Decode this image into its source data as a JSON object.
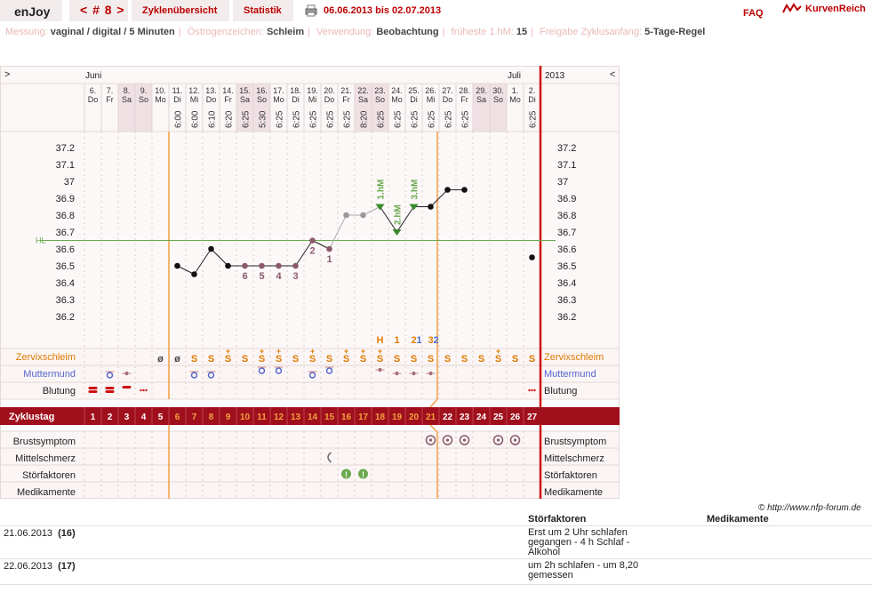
{
  "header": {
    "app_title": "enJoy",
    "cycle_nav": "< # 8 >",
    "tab_overview": "Zyklenübersicht",
    "tab_stats": "Statistik",
    "print_icon": "printer-icon",
    "date_range": "06.06.2013 bis 02.07.2013",
    "faq": "FAQ",
    "brand_icon": "curve-logo-icon",
    "brand": "KurvenReich"
  },
  "settings": {
    "measure_label": "Messung:",
    "measure_value": "vaginal / digital / 5 Minuten",
    "estrogen_label": "Östrogenzeichen:",
    "estrogen_value": "Schleim",
    "usage_label": "Verwendung:",
    "usage_value": "Beobachtung",
    "earliest_label": "früheste 1.hM:",
    "earliest_value": "15",
    "release_label": "Freigabe Zyklusanfang:",
    "release_value": "5-Tage-Regel"
  },
  "chart_data": {
    "type": "line",
    "nav_prev": ">",
    "nav_next": "<",
    "month_labels": [
      {
        "label": "Juni",
        "col": 0
      },
      {
        "label": "Juli",
        "col": 25
      }
    ],
    "year_label": "2013",
    "days": [
      {
        "date": "6.",
        "wd": "Do",
        "time": ""
      },
      {
        "date": "7.",
        "wd": "Fr",
        "time": ""
      },
      {
        "date": "8.",
        "wd": "Sa",
        "time": ""
      },
      {
        "date": "9.",
        "wd": "So",
        "time": ""
      },
      {
        "date": "10.",
        "wd": "Mo",
        "time": ""
      },
      {
        "date": "11.",
        "wd": "Di",
        "time": "6:00"
      },
      {
        "date": "12.",
        "wd": "Mi",
        "time": "6:00"
      },
      {
        "date": "13.",
        "wd": "Do",
        "time": "6:10"
      },
      {
        "date": "14.",
        "wd": "Fr",
        "time": "6:20"
      },
      {
        "date": "15.",
        "wd": "Sa",
        "time": "6:25"
      },
      {
        "date": "16.",
        "wd": "So",
        "time": "5:30"
      },
      {
        "date": "17.",
        "wd": "Mo",
        "time": "6:25"
      },
      {
        "date": "18.",
        "wd": "Di",
        "time": "6:25"
      },
      {
        "date": "19.",
        "wd": "Mi",
        "time": "6:25"
      },
      {
        "date": "20.",
        "wd": "Do",
        "time": "6:25"
      },
      {
        "date": "21.",
        "wd": "Fr",
        "time": "6:25"
      },
      {
        "date": "22.",
        "wd": "Sa",
        "time": "8:20"
      },
      {
        "date": "23.",
        "wd": "So",
        "time": "6:25"
      },
      {
        "date": "24.",
        "wd": "Mo",
        "time": "6:25"
      },
      {
        "date": "25.",
        "wd": "Di",
        "time": "6:25"
      },
      {
        "date": "26.",
        "wd": "Mi",
        "time": "6:25"
      },
      {
        "date": "27.",
        "wd": "Do",
        "time": "6:25"
      },
      {
        "date": "28.",
        "wd": "Fr",
        "time": "6:25"
      },
      {
        "date": "29.",
        "wd": "Sa",
        "time": ""
      },
      {
        "date": "30.",
        "wd": "So",
        "time": ""
      },
      {
        "date": "1.",
        "wd": "Mo",
        "time": ""
      },
      {
        "date": "2.",
        "wd": "Di",
        "time": "6:25"
      }
    ],
    "weekend_cols": [
      2,
      3,
      9,
      10,
      16,
      17,
      23,
      24
    ],
    "ylim": [
      36.1,
      37.3
    ],
    "y_ticks": [
      "37.2",
      "37.1",
      "37",
      "36.9",
      "36.8",
      "36.7",
      "36.6",
      "36.5",
      "36.4",
      "36.3",
      "36.2"
    ],
    "hl_label": "HL",
    "hl_value": 36.65,
    "temperatures": [
      {
        "col": 5,
        "t": 36.5,
        "kind": "normal"
      },
      {
        "col": 6,
        "t": 36.45,
        "kind": "normal"
      },
      {
        "col": 7,
        "t": 36.6,
        "kind": "normal"
      },
      {
        "col": 8,
        "t": 36.5,
        "kind": "normal"
      },
      {
        "col": 9,
        "t": 36.5,
        "kind": "low",
        "mark": "6"
      },
      {
        "col": 10,
        "t": 36.5,
        "kind": "low",
        "mark": "5"
      },
      {
        "col": 11,
        "t": 36.5,
        "kind": "low",
        "mark": "4"
      },
      {
        "col": 12,
        "t": 36.5,
        "kind": "low",
        "mark": "3"
      },
      {
        "col": 13,
        "t": 36.65,
        "kind": "low",
        "mark": "2"
      },
      {
        "col": 14,
        "t": 36.6,
        "kind": "low",
        "mark": "1"
      },
      {
        "col": 15,
        "t": 36.8,
        "kind": "gray"
      },
      {
        "col": 16,
        "t": 36.8,
        "kind": "gray"
      },
      {
        "col": 17,
        "t": 36.85,
        "kind": "peak",
        "mark": "1.hM"
      },
      {
        "col": 18,
        "t": 36.7,
        "kind": "peak",
        "mark": "2.hM"
      },
      {
        "col": 19,
        "t": 36.85,
        "kind": "peak",
        "mark": "3.hM"
      },
      {
        "col": 20,
        "t": 36.85,
        "kind": "normal"
      },
      {
        "col": 21,
        "t": 36.95,
        "kind": "normal"
      },
      {
        "col": 22,
        "t": 36.95,
        "kind": "normal"
      },
      {
        "col": 26,
        "t": 36.55,
        "kind": "single"
      }
    ],
    "peak_markers": [
      {
        "col": 17,
        "label": "H",
        "color": "#e07a00"
      },
      {
        "col": 18,
        "label": "1",
        "color": "#e07a00"
      },
      {
        "col": 19,
        "label": "2",
        "color": "#e07a00"
      },
      {
        "col": 19,
        "label": "1",
        "color": "#4a6fd0",
        "offset": 8
      },
      {
        "col": 20,
        "label": "3",
        "color": "#e07a00"
      },
      {
        "col": 20,
        "label": "2",
        "color": "#4a6fd0",
        "offset": 8
      }
    ],
    "rows": {
      "cervix_label": "Zervixschleim",
      "mouth_label": "Muttermund",
      "bleeding_label": "Blutung",
      "cycle_label": "Zyklustag",
      "breast_label": "Brustsymptom",
      "midpain_label": "Mittelschmerz",
      "disturb_label": "Störfaktoren",
      "meds_label": "Medikamente"
    },
    "cervix": [
      "",
      "",
      "",
      "",
      "ø",
      "ø",
      "S",
      "S",
      "S",
      "S",
      "S",
      "S",
      "S",
      "S",
      "S",
      "S",
      "S",
      "S",
      "S",
      "S",
      "S",
      "S",
      "S",
      "S",
      "S",
      "S",
      "S"
    ],
    "cervix_plus": [
      8,
      10,
      11,
      13,
      15,
      16,
      17,
      24
    ],
    "cycle_days": [
      "1",
      "2",
      "3",
      "4",
      "5",
      "6",
      "7",
      "8",
      "9",
      "10",
      "11",
      "12",
      "13",
      "14",
      "15",
      "16",
      "17",
      "18",
      "19",
      "20",
      "21",
      "22",
      "23",
      "24",
      "25",
      "26",
      "27"
    ],
    "breast_cols": [
      20,
      21,
      22,
      24,
      25
    ],
    "midpain_cols": [
      14
    ],
    "disturb_cols": [
      15,
      16
    ],
    "copyright": "© http://www.nfp-forum.de"
  },
  "notes": {
    "head_disturb": "Störfaktoren",
    "head_meds": "Medikamente",
    "rows": [
      {
        "date": "21.06.2013",
        "day": "(16)",
        "text": "Erst um 2 Uhr schlafen gegangen - 4 h Schlaf - Alkohol"
      },
      {
        "date": "22.06.2013",
        "day": "(17)",
        "text": "um 2h schlafen - um 8,20 gemessen"
      }
    ]
  }
}
